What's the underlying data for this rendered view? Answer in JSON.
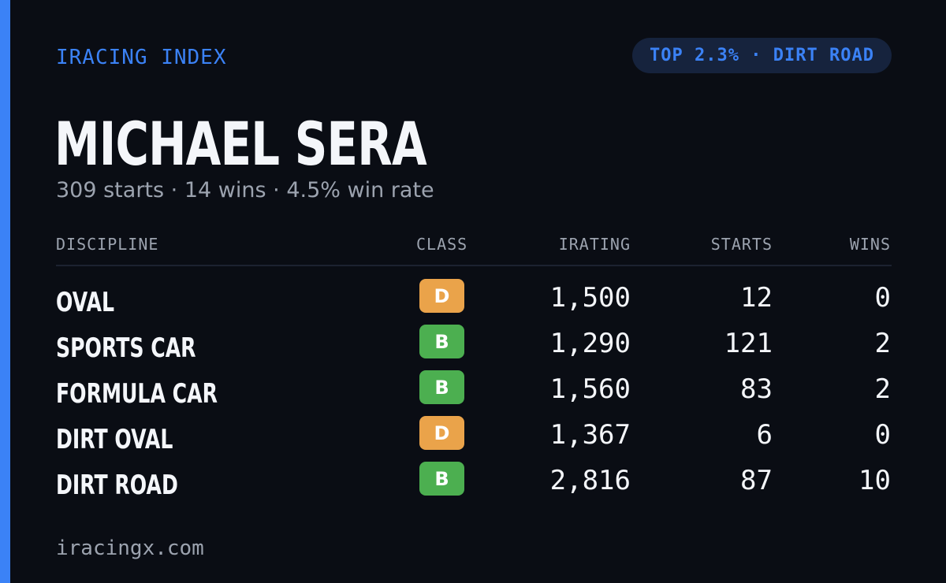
{
  "brand": "IRACING INDEX",
  "rank_badge": "TOP 2.3% · DIRT ROAD",
  "driver": {
    "name": "MICHAEL SERA",
    "starts": "309 starts",
    "wins": "14 wins",
    "win_rate": "4.5% win rate",
    "separator": "·"
  },
  "table": {
    "headers": {
      "discipline": "DISCIPLINE",
      "class": "CLASS",
      "irating": "IRATING",
      "starts": "STARTS",
      "wins": "WINS"
    },
    "rows": [
      {
        "discipline": "OVAL",
        "class": "D",
        "class_color": "#eaa34a",
        "irating": "1,500",
        "starts": "12",
        "wins": "0"
      },
      {
        "discipline": "SPORTS CAR",
        "class": "B",
        "class_color": "#4caf50",
        "irating": "1,290",
        "starts": "121",
        "wins": "2"
      },
      {
        "discipline": "FORMULA CAR",
        "class": "B",
        "class_color": "#4caf50",
        "irating": "1,560",
        "starts": "83",
        "wins": "2"
      },
      {
        "discipline": "DIRT OVAL",
        "class": "D",
        "class_color": "#eaa34a",
        "irating": "1,367",
        "starts": "6",
        "wins": "0"
      },
      {
        "discipline": "DIRT ROAD",
        "class": "B",
        "class_color": "#4caf50",
        "irating": "2,816",
        "starts": "87",
        "wins": "10"
      }
    ]
  },
  "footer": "iracingx.com",
  "colors": {
    "accent": "#3b82f6",
    "background": "#0a0d14",
    "muted_text": "#9ca3af",
    "class_d": "#eaa34a",
    "class_b": "#4caf50"
  }
}
